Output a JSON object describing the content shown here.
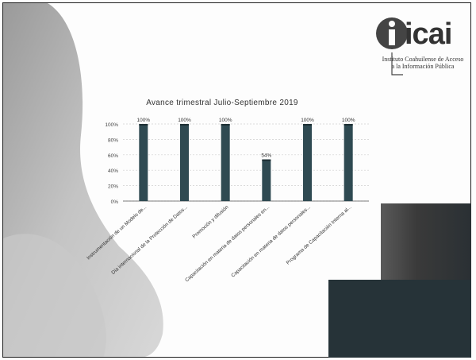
{
  "logo": {
    "wordmark": "icai",
    "subtitle_line1": "Instituto Coahuilense de Acceso",
    "subtitle_line2": "a la Información Pública"
  },
  "colors": {
    "bar_fill": "#2f4a52",
    "bar_top": "#1d2f34",
    "gradient_shape": "#b5b5b5",
    "dark_block": "#263338"
  },
  "chart_data": {
    "type": "bar",
    "title": "Avance trimestral Julio-Septiembre 2019",
    "categories": [
      "Instrumentación de un Modelo de...",
      "Día internacional de la Protección de Datos...",
      "Promoción y difusión",
      "Capacitación en materia de datos personales en...",
      "Capacitación en materia de datos personales...",
      "Programa de Capacitación Interna al..."
    ],
    "values": [
      100,
      100,
      100,
      54,
      100,
      100
    ],
    "data_labels": [
      "100%",
      "100%",
      "100%",
      "54%",
      "100%",
      "100%"
    ],
    "y_ticks": [
      "0%",
      "20%",
      "40%",
      "60%",
      "80%",
      "100%"
    ],
    "ylim": [
      0,
      100
    ],
    "grid": true
  }
}
